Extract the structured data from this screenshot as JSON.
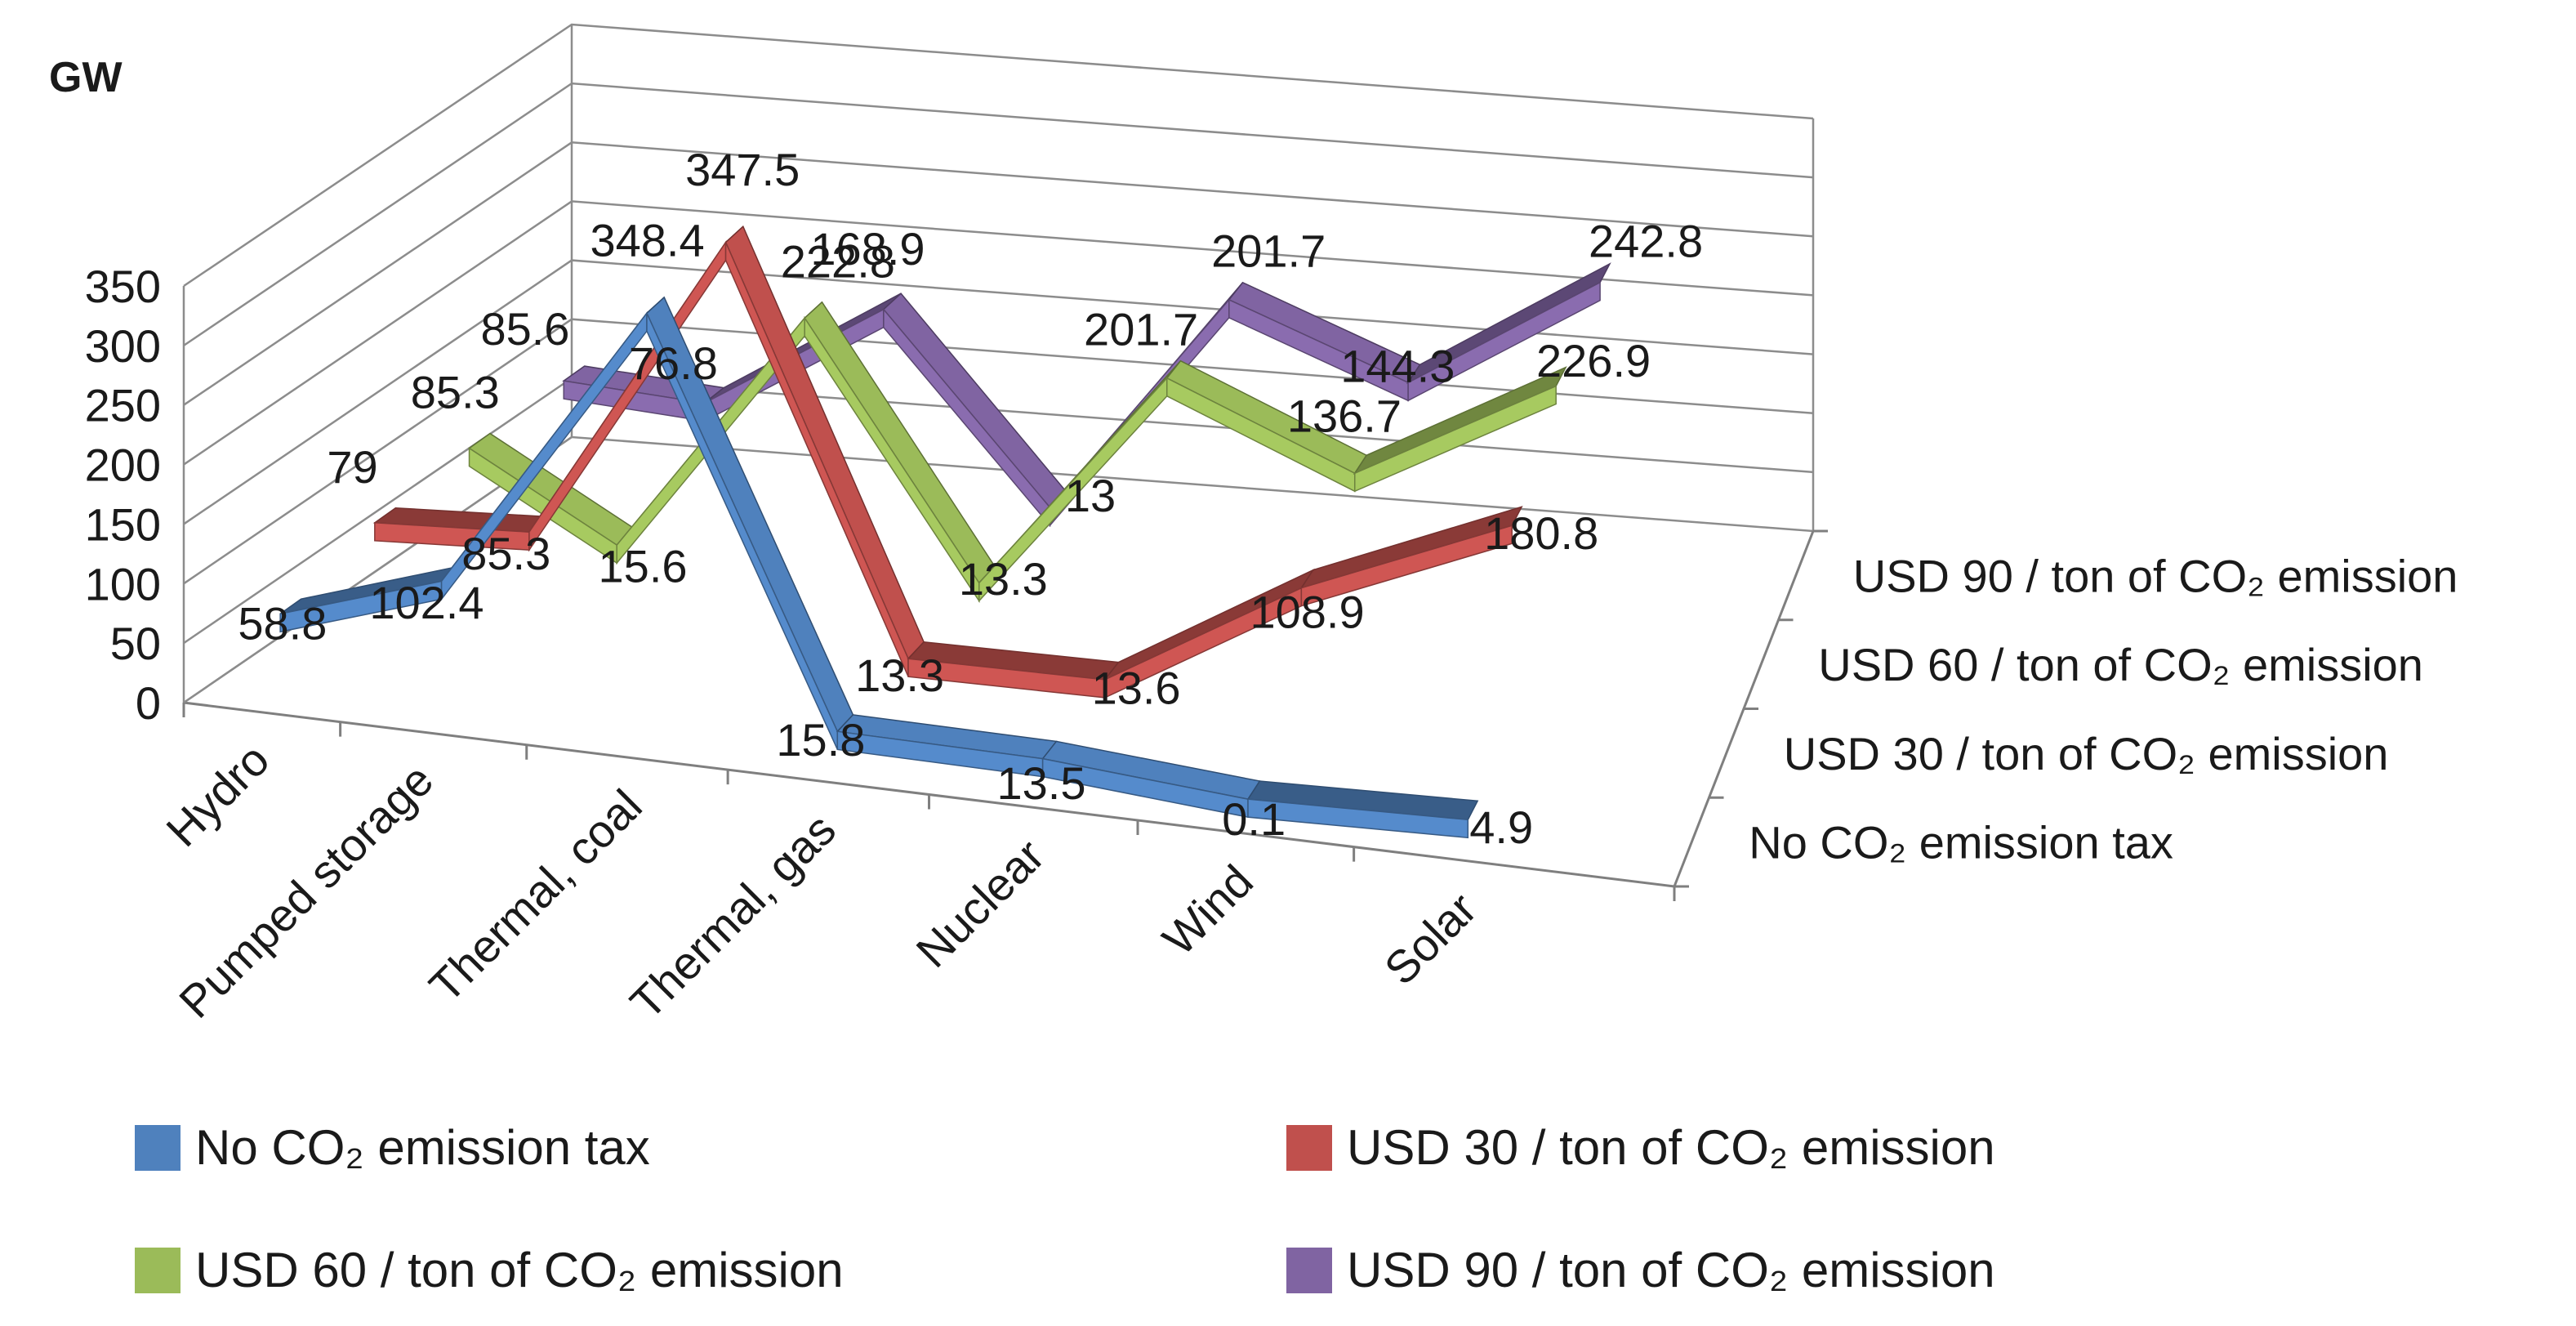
{
  "chart_data": {
    "type": "line",
    "style": "3d-ribbon",
    "ylabel": "GW",
    "ylim": [
      0,
      350
    ],
    "yticks": [
      "0",
      "50",
      "100",
      "150",
      "200",
      "250",
      "300",
      "350"
    ],
    "categories": [
      "Hydro",
      "Pumped storage",
      "Thermal, coal",
      "Thermal, gas",
      "Nuclear",
      "Wind",
      "Solar"
    ],
    "series": [
      {
        "name": "No CO₂ emission tax",
        "color": "#4f81bd",
        "values": [
          58.8,
          102.4,
          348.4,
          15.8,
          13.5,
          0.1,
          4.9
        ],
        "labels": [
          "58.8",
          "102.4",
          "348.4",
          "15.8",
          "13.5",
          "0.1",
          "4.9"
        ]
      },
      {
        "name": "USD 30 / ton of CO₂ emission",
        "color": "#c0504d",
        "values": [
          79,
          85.3,
          347.5,
          13.3,
          13.6,
          108.9,
          180.8
        ],
        "labels": [
          "79",
          "85.3",
          "347.5",
          "13.3",
          "13.6",
          "108.9",
          "180.8"
        ]
      },
      {
        "name": "USD 60 / ton of CO₂ emission",
        "color": "#9bbb59",
        "values": [
          85.3,
          15.6,
          222.8,
          13.3,
          201.7,
          136.7,
          226.9
        ],
        "labels": [
          "85.3",
          "15.6",
          "222.8",
          "13.3",
          "201.7",
          "136.7",
          "226.9"
        ]
      },
      {
        "name": "USD 90 / ton of CO₂ emission",
        "color": "#8064a2",
        "values": [
          85.6,
          76.8,
          168.9,
          13,
          201.7,
          144.3,
          242.8
        ],
        "labels": [
          "85.6",
          "76.8",
          "168.9",
          "13",
          "201.7",
          "144.3",
          "242.8"
        ]
      }
    ],
    "depth_axis_labels": [
      "No CO₂ emission tax",
      "USD 30 / ton of CO₂ emission",
      "USD 60 / ton of CO₂ emission",
      "USD 90 / ton of CO₂ emission"
    ],
    "legend_position": "bottom"
  }
}
